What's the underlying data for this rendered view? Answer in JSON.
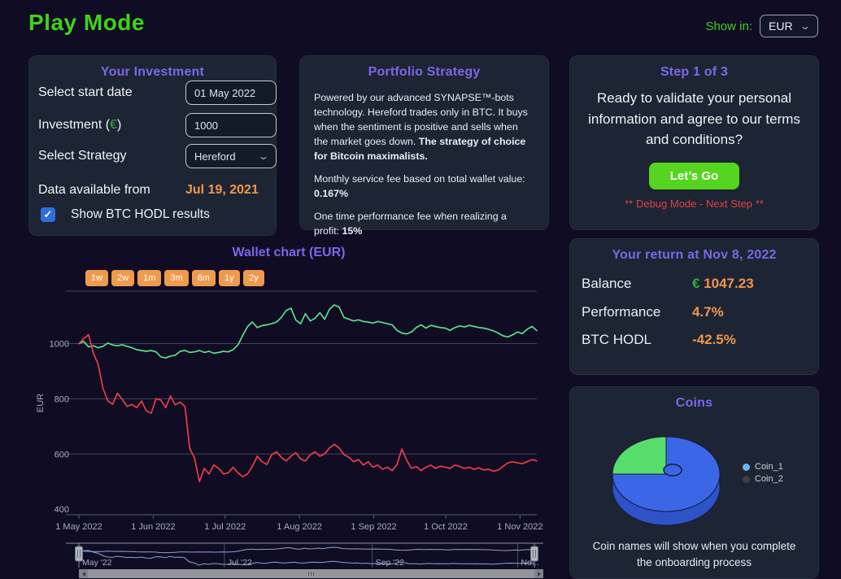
{
  "app": {
    "title": "Play Mode"
  },
  "topbar": {
    "show_in_label": "Show in:",
    "currency": "EUR",
    "chevron": "⌄"
  },
  "investment": {
    "title": "Your Investment",
    "start_date_label": "Select start date",
    "start_date_value": "01 May 2022",
    "amount_label_prefix": "Investment (",
    "amount_currency_symbol": "€",
    "amount_label_suffix": ")",
    "amount_value": "1000",
    "strategy_label": "Select Strategy",
    "strategy_value": "Hereford",
    "strategy_chevron": "⌄",
    "data_available_label": "Data available from",
    "data_available_value": "Jul 19, 2021",
    "checkbox_mark": "✓",
    "hodl_checkbox_label": "Show BTC HODL results"
  },
  "portfolio": {
    "title": "Portfolio Strategy",
    "p1": "Powered by our advanced SYNAPSE™-bots technology. Hereford trades only in BTC. It buys when the sentiment is positive and sells when the market goes down. ",
    "p1_bold": "The strategy of choice for Bitcoin maximalists.",
    "p2": "Monthly service fee based on total wallet value: ",
    "p2_bold": "0.167%",
    "p3": "One time performance fee when realizing a profit: ",
    "p3_bold": "15%"
  },
  "step": {
    "title": "Step 1 of 3",
    "question": "Ready to validate your personal information and agree to our terms and conditions?",
    "cta": "Let’s Go",
    "debug": "** Debug Mode - Next Step **"
  },
  "wallet": {
    "title": "Wallet chart (EUR)",
    "ranges": [
      "1w",
      "2w",
      "1m",
      "3m",
      "6m",
      "1y",
      "2y"
    ]
  },
  "returns": {
    "title": "Your return at Nov 8, 2022",
    "balance": {
      "label": "Balance",
      "euro": "€",
      "value": " 1047.23"
    },
    "performance": {
      "label": "Performance",
      "value": "4.7%"
    },
    "btc_hodl": {
      "label": "BTC HODL",
      "value": "-42.5%"
    }
  },
  "coins": {
    "title": "Coins",
    "legend": [
      {
        "label": "Coin_1"
      },
      {
        "label": "Coin_2"
      }
    ],
    "footer": "Coin names will show when you complete the onboarding process"
  },
  "colors": {
    "page_bg": "#0f0c24",
    "card_bg": "#1d2433",
    "purple": "#7b68e8",
    "green": "#3fd316",
    "button_green": "#55d51f",
    "orange": "#f0964a",
    "orange_btn": "#f09a4e",
    "red": "#e04343",
    "checkbox_blue": "#2d6fd9",
    "chart_green": "#5ce087",
    "chart_red": "#ee3d44",
    "grid": "#41465c",
    "axis_label": "#a6afc2",
    "nav_line": "#8fa3d0",
    "pie_blue": "#3b66e6",
    "pie_green": "#57dd6b",
    "legend_coin1": "#6db3f2",
    "legend_coin2": "#3f3f46"
  },
  "chart_data": [
    {
      "type": "line",
      "title": "Wallet chart (EUR)",
      "ylabel": "EUR",
      "x_total_days": 191,
      "x_ticks": [
        {
          "label": "1 May 2022",
          "day": 0
        },
        {
          "label": "1 Jun 2022",
          "day": 31
        },
        {
          "label": "1 Jul 2022",
          "day": 61
        },
        {
          "label": "1 Aug 2022",
          "day": 92
        },
        {
          "label": "1 Sep 2022",
          "day": 123
        },
        {
          "label": "1 Oct 2022",
          "day": 153
        },
        {
          "label": "1 Nov 2022",
          "day": 184
        }
      ],
      "y_label_ticks": [
        400,
        600,
        800,
        1000
      ],
      "y_grid_ticks": [
        600,
        800,
        1000
      ],
      "ylim": [
        380,
        1190
      ],
      "series": [
        {
          "name": "Wallet",
          "color_key": "chart_green",
          "values": [
            1000,
            1008,
            988,
            992,
            985,
            990,
            1002,
            995,
            992,
            996,
            990,
            985,
            978,
            975,
            972,
            975,
            970,
            952,
            948,
            955,
            958,
            972,
            975,
            968,
            970,
            975,
            968,
            972,
            965,
            968,
            972,
            970,
            978,
            995,
            1030,
            1062,
            1078,
            1058,
            1065,
            1068,
            1072,
            1078,
            1095,
            1120,
            1128,
            1085,
            1072,
            1108,
            1082,
            1092,
            1112,
            1088,
            1125,
            1140,
            1132,
            1095,
            1088,
            1082,
            1086,
            1080,
            1078,
            1074,
            1080,
            1076,
            1072,
            1068,
            1048,
            1038,
            1035,
            1042,
            1058,
            1068,
            1056,
            1066,
            1062,
            1058,
            1056,
            1048,
            1058,
            1064,
            1060,
            1066,
            1062,
            1058,
            1056,
            1052,
            1046,
            1038,
            1028,
            1024,
            1032,
            1042,
            1036,
            1052,
            1062,
            1047
          ]
        },
        {
          "name": "BTC HODL",
          "color_key": "chart_red",
          "values": [
            1000,
            1018,
            1032,
            965,
            925,
            838,
            792,
            780,
            820,
            798,
            772,
            780,
            768,
            792,
            756,
            748,
            800,
            796,
            768,
            810,
            778,
            788,
            772,
            620,
            585,
            500,
            548,
            528,
            560,
            548,
            528,
            532,
            552,
            532,
            518,
            528,
            555,
            592,
            572,
            562,
            598,
            608,
            588,
            575,
            592,
            605,
            582,
            575,
            598,
            608,
            592,
            600,
            622,
            635,
            622,
            598,
            588,
            572,
            580,
            560,
            572,
            552,
            560,
            545,
            552,
            540,
            562,
            618,
            578,
            548,
            555,
            540,
            552,
            560,
            548,
            556,
            552,
            548,
            560,
            555,
            548,
            552,
            545,
            550,
            542,
            545,
            538,
            542,
            555,
            568,
            572,
            568,
            565,
            572,
            580,
            575
          ]
        }
      ],
      "navigator": {
        "labels": [
          {
            "label": "May '22",
            "day": 0
          },
          {
            "label": "Jul '22",
            "day": 61
          },
          {
            "label": "Sep '22",
            "day": 123
          },
          {
            "label": "No...",
            "day": 184
          }
        ],
        "gridline_days": [
          61,
          123,
          184
        ],
        "ylim": [
          470,
          1170
        ]
      }
    },
    {
      "type": "pie",
      "labels": [
        "Coin_1",
        "Coin_2"
      ],
      "values": [
        75,
        25
      ],
      "slice_color_keys": [
        "pie_blue",
        "pie_green"
      ],
      "legend_dot_color_keys": [
        "legend_coin1",
        "legend_coin2"
      ]
    }
  ]
}
